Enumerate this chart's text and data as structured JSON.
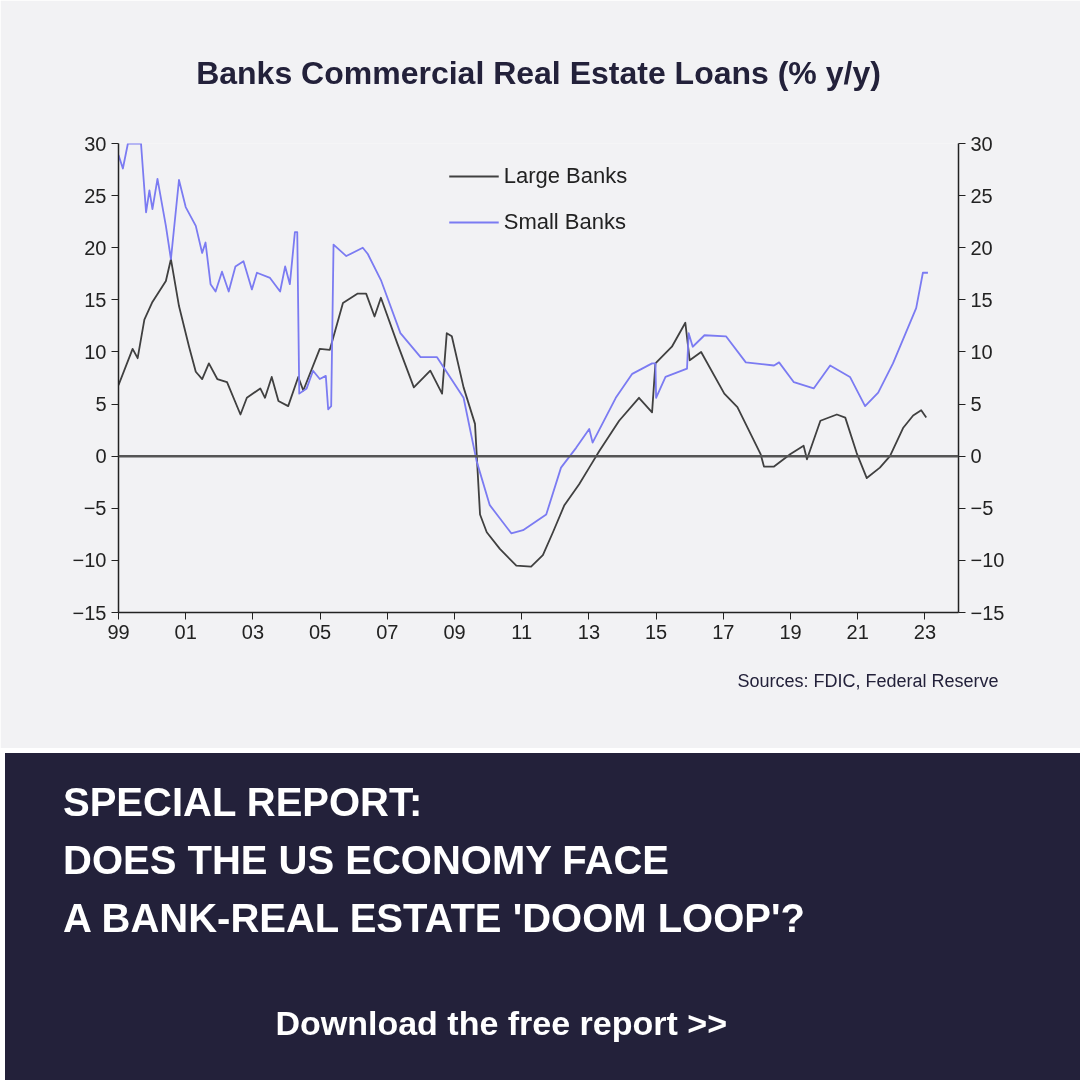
{
  "chart_data": {
    "type": "line",
    "title": "Banks Commercial Real Estate Loans (% y/y)",
    "xlim": [
      1999,
      2024
    ],
    "xticks": [
      {
        "value": 1999,
        "label": "99"
      },
      {
        "value": 2001,
        "label": "01"
      },
      {
        "value": 2003,
        "label": "03"
      },
      {
        "value": 2005,
        "label": "05"
      },
      {
        "value": 2007,
        "label": "07"
      },
      {
        "value": 2009,
        "label": "09"
      },
      {
        "value": 2011,
        "label": "11"
      },
      {
        "value": 2013,
        "label": "13"
      },
      {
        "value": 2015,
        "label": "15"
      },
      {
        "value": 2017,
        "label": "17"
      },
      {
        "value": 2019,
        "label": "19"
      },
      {
        "value": 2021,
        "label": "21"
      },
      {
        "value": 2023,
        "label": "23"
      }
    ],
    "ylim": [
      -15,
      30
    ],
    "yticks": [
      -15,
      -10,
      -5,
      0,
      5,
      10,
      15,
      20,
      25,
      30
    ],
    "y2lim": [
      -15,
      30
    ],
    "y2ticks": [
      -15,
      -10,
      -5,
      0,
      5,
      10,
      15,
      20,
      25,
      30
    ],
    "legend": "top",
    "line_style": "solid",
    "ref_lines": [
      {
        "axis": "y",
        "value": 0,
        "color": "#555555"
      }
    ],
    "series": [
      {
        "name": "Large Banks",
        "color": "#404040",
        "x": [
          1999.0,
          1999.42,
          1999.57,
          1999.77,
          2000.01,
          2000.41,
          2000.56,
          2000.8,
          2001.1,
          2001.3,
          2001.49,
          2001.69,
          2001.94,
          2002.23,
          2002.63,
          2002.82,
          2003.22,
          2003.36,
          2003.56,
          2003.76,
          2004.05,
          2004.35,
          2004.5,
          2004.99,
          2005.29,
          2005.68,
          2006.12,
          2006.37,
          2006.62,
          2006.81,
          2007.3,
          2007.79,
          2008.28,
          2008.63,
          2008.77,
          2008.92,
          2009.27,
          2009.61,
          2009.76,
          2009.96,
          2010.35,
          2010.84,
          2011.28,
          2011.63,
          2011.93,
          2012.27,
          2012.71,
          2013.01,
          2013.31,
          2013.9,
          2014.49,
          2014.88,
          2014.98,
          2015.47,
          2015.87,
          2016.0,
          2016.34,
          2017.03,
          2017.42,
          2018.11,
          2018.21,
          2018.51,
          2019.0,
          2019.39,
          2019.49,
          2019.89,
          2020.38,
          2020.63,
          2020.97,
          2021.27,
          2021.66,
          2021.96,
          2022.35,
          2022.65,
          2022.89,
          2023.04
        ],
        "values": [
          6.8,
          10.3,
          9.4,
          13.1,
          14.8,
          16.8,
          18.9,
          14.4,
          10.5,
          8.1,
          7.4,
          8.9,
          7.4,
          7.1,
          4.0,
          5.6,
          6.5,
          5.6,
          7.6,
          5.3,
          4.8,
          7.6,
          6.3,
          10.3,
          10.2,
          14.7,
          15.6,
          15.6,
          13.4,
          15.2,
          10.8,
          6.6,
          8.2,
          6.0,
          11.8,
          11.5,
          6.6,
          3.1,
          -5.6,
          -7.3,
          -8.9,
          -10.5,
          -10.6,
          -9.5,
          -7.3,
          -4.7,
          -2.7,
          -1.1,
          0.5,
          3.4,
          5.6,
          4.2,
          8.9,
          10.5,
          12.8,
          9.2,
          10.0,
          6.0,
          4.7,
          0.2,
          -1.0,
          -1.0,
          0.2,
          1.0,
          -0.3,
          3.4,
          4.0,
          3.7,
          0.3,
          -2.1,
          -1.1,
          0.0,
          2.7,
          3.9,
          4.4,
          3.7
        ]
      },
      {
        "name": "Small Banks",
        "color": "#7b7bf2",
        "x": [
          1999.0,
          1999.13,
          1999.28,
          1999.52,
          1999.67,
          1999.82,
          1999.92,
          2000.01,
          2000.16,
          2000.41,
          2000.56,
          2000.8,
          2001.0,
          2001.3,
          2001.49,
          2001.59,
          2001.74,
          2001.89,
          2002.08,
          2002.28,
          2002.48,
          2002.72,
          2002.97,
          2003.12,
          2003.51,
          2003.81,
          2003.96,
          2004.1,
          2004.25,
          2004.32,
          2004.38,
          2004.6,
          2004.79,
          2004.99,
          2005.17,
          2005.24,
          2005.33,
          2005.4,
          2005.78,
          2006.27,
          2006.42,
          2006.81,
          2007.39,
          2007.99,
          2008.48,
          2009.27,
          2009.66,
          2010.05,
          2010.69,
          2011.04,
          2011.73,
          2012.17,
          2012.62,
          2013.01,
          2013.11,
          2013.8,
          2014.29,
          2014.88,
          2014.98,
          2015.0,
          2015.28,
          2015.92,
          2015.97,
          2016.09,
          2016.44,
          2017.08,
          2017.67,
          2018.51,
          2018.66,
          2019.1,
          2019.69,
          2020.18,
          2020.77,
          2021.22,
          2021.61,
          2022.05,
          2022.74,
          2022.94,
          2023.09
        ],
        "values": [
          28.9,
          27.6,
          30.0,
          30.0,
          30.0,
          23.4,
          25.5,
          23.7,
          26.6,
          22.1,
          18.9,
          26.5,
          23.9,
          22.1,
          19.5,
          20.5,
          16.5,
          15.8,
          17.7,
          15.8,
          18.2,
          18.7,
          16.0,
          17.6,
          17.1,
          15.8,
          18.2,
          16.5,
          21.5,
          21.5,
          6.0,
          6.5,
          8.2,
          7.4,
          7.7,
          4.5,
          4.8,
          20.3,
          19.2,
          20.0,
          19.4,
          16.9,
          11.8,
          9.5,
          9.5,
          5.6,
          -0.5,
          -4.7,
          -7.4,
          -7.1,
          -5.6,
          -1.1,
          0.8,
          2.6,
          1.3,
          5.6,
          7.9,
          8.9,
          8.9,
          5.6,
          7.6,
          8.4,
          11.8,
          10.5,
          11.6,
          11.5,
          9.0,
          8.7,
          9.0,
          7.1,
          6.5,
          8.7,
          7.6,
          4.8,
          6.1,
          8.9,
          14.2,
          17.6,
          17.6
        ]
      }
    ],
    "annotations": [
      "Sources: FDIC, Federal Reserve",
      "SPECIAL REPORT:",
      "DOES THE US ECONOMY FACE",
      "A BANK-REAL ESTATE 'DOOM LOOP'?",
      "Download the free report >>"
    ]
  }
}
